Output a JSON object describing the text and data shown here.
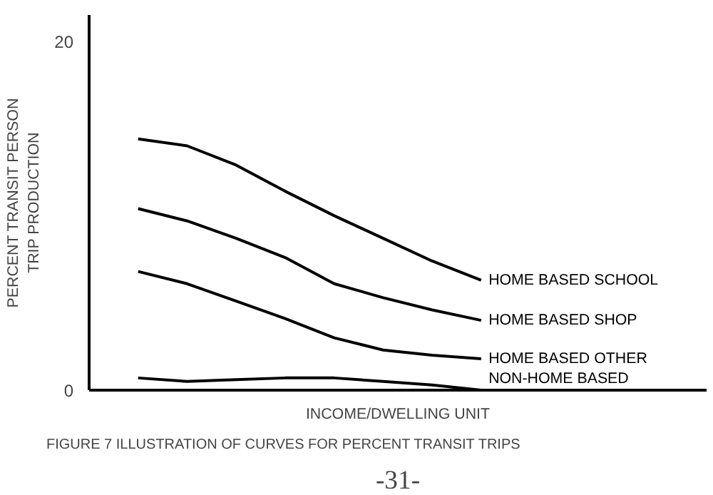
{
  "chart_data": {
    "type": "line",
    "xlabel": "INCOME/DWELLING UNIT",
    "ylabel": "PERCENT TRANSIT PERSON\nTRIP PRODUCTION",
    "categories": [
      null,
      null,
      null,
      null,
      null,
      null,
      null,
      null
    ],
    "series": [
      {
        "name": "HOME BASED SCHOOL",
        "color": "#000000",
        "values": [
          14.4,
          14.0,
          12.9,
          11.4,
          10.0,
          8.7,
          7.4,
          6.3
        ]
      },
      {
        "name": "HOME BASED SHOP",
        "color": "#000000",
        "values": [
          10.4,
          9.7,
          8.7,
          7.6,
          6.1,
          5.3,
          4.6,
          4.0
        ]
      },
      {
        "name": "HOME BASED OTHER",
        "color": "#000000",
        "values": [
          6.8,
          6.1,
          5.1,
          4.1,
          3.0,
          2.3,
          2.0,
          1.8
        ]
      },
      {
        "name": "NON-HOME BASED",
        "color": "#000000",
        "values": [
          0.7,
          0.5,
          0.6,
          0.7,
          0.7,
          0.5,
          0.3,
          0.0
        ]
      }
    ],
    "ylim": [
      0,
      21.5
    ],
    "yticks": [
      0,
      20
    ],
    "grid": false,
    "tick_labels": "y",
    "marker": "none",
    "line_style": "solid",
    "annotations": [
      "FIGURE 7  ILLUSTRATION OF CURVES FOR PERCENT TRANSIT TRIPS",
      "-31-"
    ]
  }
}
